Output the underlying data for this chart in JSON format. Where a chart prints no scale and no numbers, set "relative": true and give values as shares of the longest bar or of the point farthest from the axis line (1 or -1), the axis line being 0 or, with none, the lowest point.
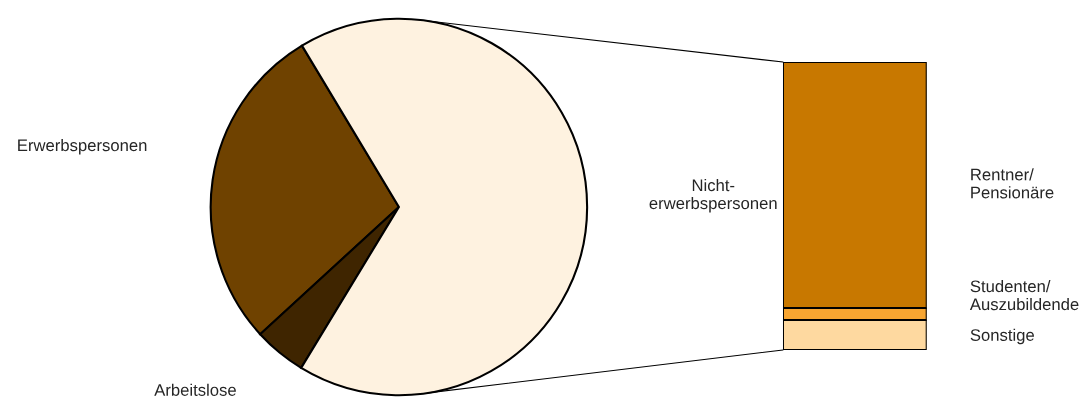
{
  "chart_data": [
    {
      "type": "pie",
      "categories": [
        "Erwerbspersonen",
        "Arbeitslose",
        "Nicht-\nerwerbspersonen"
      ],
      "values": [
        28.2,
        4.5,
        67.3
      ],
      "colors": [
        "#6f4200",
        "#3f2500",
        "#fef2e0"
      ]
    },
    {
      "type": "bar",
      "stacked": true,
      "relative": true,
      "categories": [
        null
      ],
      "legend": false,
      "series": [
        {
          "name": "Sonstige",
          "color": "#fed9a0",
          "values": [
            0.104
          ]
        },
        {
          "name": "Studenten/\nAuszubildende",
          "color": "#f7a531",
          "values": [
            0.042
          ]
        },
        {
          "name": "Rentner/\nPensionäre",
          "color": "#c87800",
          "values": [
            0.854
          ]
        }
      ]
    }
  ]
}
